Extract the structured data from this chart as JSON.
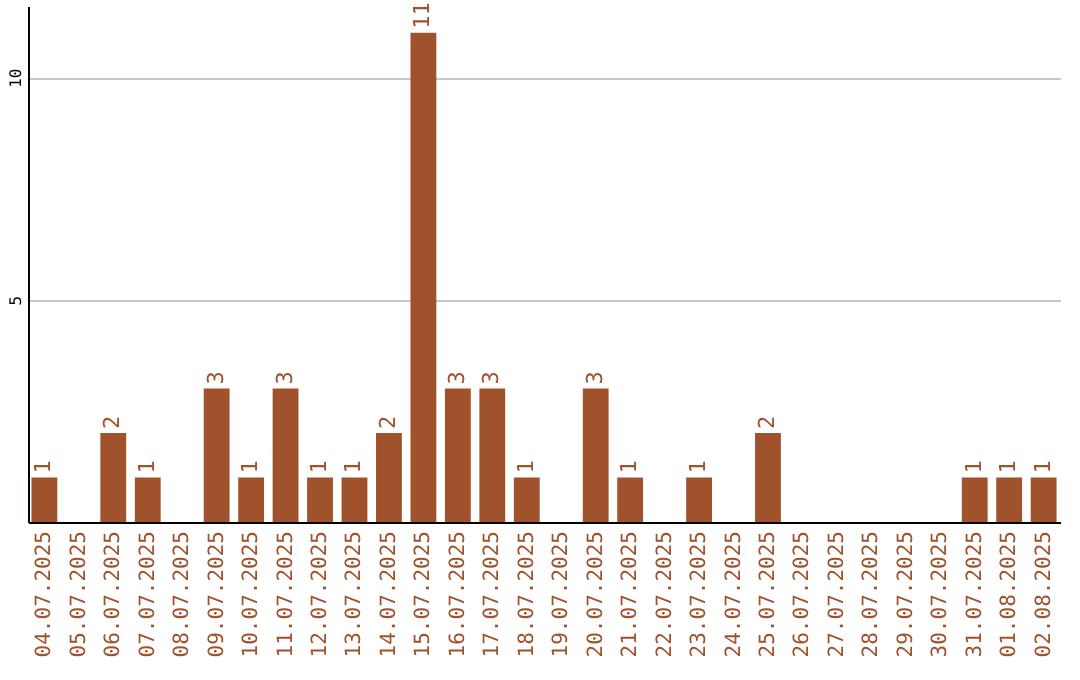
{
  "chart_data": {
    "type": "bar",
    "categories": [
      "04.07.2025",
      "05.07.2025",
      "06.07.2025",
      "07.07.2025",
      "08.07.2025",
      "09.07.2025",
      "10.07.2025",
      "11.07.2025",
      "12.07.2025",
      "13.07.2025",
      "14.07.2025",
      "15.07.2025",
      "16.07.2025",
      "17.07.2025",
      "18.07.2025",
      "19.07.2025",
      "20.07.2025",
      "21.07.2025",
      "22.07.2025",
      "23.07.2025",
      "24.07.2025",
      "25.07.2025",
      "26.07.2025",
      "27.07.2025",
      "28.07.2025",
      "29.07.2025",
      "30.07.2025",
      "31.07.2025",
      "01.08.2025",
      "02.08.2025"
    ],
    "values": [
      1,
      0,
      2,
      1,
      0,
      3,
      1,
      3,
      1,
      1,
      2,
      11,
      3,
      3,
      1,
      0,
      3,
      1,
      0,
      1,
      0,
      2,
      0,
      0,
      0,
      0,
      0,
      1,
      1,
      1
    ],
    "value_labels": [
      "1",
      null,
      "2",
      "1",
      null,
      "3",
      "1",
      "3",
      "1",
      "1",
      "2",
      "11",
      "3",
      "3",
      "1",
      null,
      "3",
      "1",
      null,
      "1",
      null,
      "2",
      null,
      null,
      null,
      null,
      null,
      "1",
      "1",
      "1"
    ],
    "color": "#a0522d",
    "ylim": [
      0,
      11.6
    ],
    "yticks": [
      5,
      10
    ],
    "grid": "y"
  }
}
